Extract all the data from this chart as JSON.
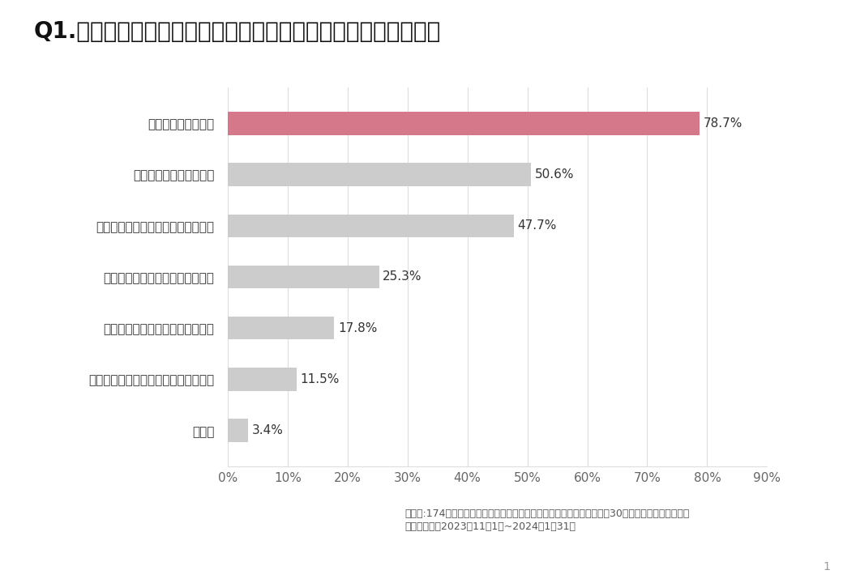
{
  "title": "Q1.海外留学を考えた主な理由を教えてください（複数回答可）",
  "categories": [
    "英語力を伸ばしたい",
    "海外に住んでみたかった",
    "看護留学プログラムに興味があった",
    "外国籍の患者対応が必要と思った",
    "職場を退職するタイミングだった",
    "海外ボランティア参加を目指している",
    "その他"
  ],
  "values": [
    78.7,
    50.6,
    47.7,
    25.3,
    17.8,
    11.5,
    3.4
  ],
  "labels": [
    "78.7%",
    "50.6%",
    "47.7%",
    "25.3%",
    "17.8%",
    "11.5%",
    "3.4%"
  ],
  "bar_colors": [
    "#d4788a",
    "#cccccc",
    "#cccccc",
    "#cccccc",
    "#cccccc",
    "#cccccc",
    "#cccccc"
  ],
  "xlim": [
    0,
    90
  ],
  "xticks": [
    0,
    10,
    20,
    30,
    40,
    50,
    60,
    70,
    80,
    90
  ],
  "xtick_labels": [
    "0%",
    "10%",
    "20%",
    "30%",
    "40%",
    "50%",
    "60%",
    "70%",
    "80%",
    "90%"
  ],
  "footnote_line1": "回答者:174名　複数回答可　調査対象：ワーキングホリデーで渡航した30歳までの日本人正看護師",
  "footnote_line2": "調査実施日：2023年11月1日~2024年1月31日",
  "background_color": "#ffffff",
  "bar_height": 0.45,
  "title_fontsize": 20,
  "label_fontsize": 11,
  "tick_fontsize": 11,
  "footnote_fontsize": 9,
  "grid_color": "#dddddd"
}
